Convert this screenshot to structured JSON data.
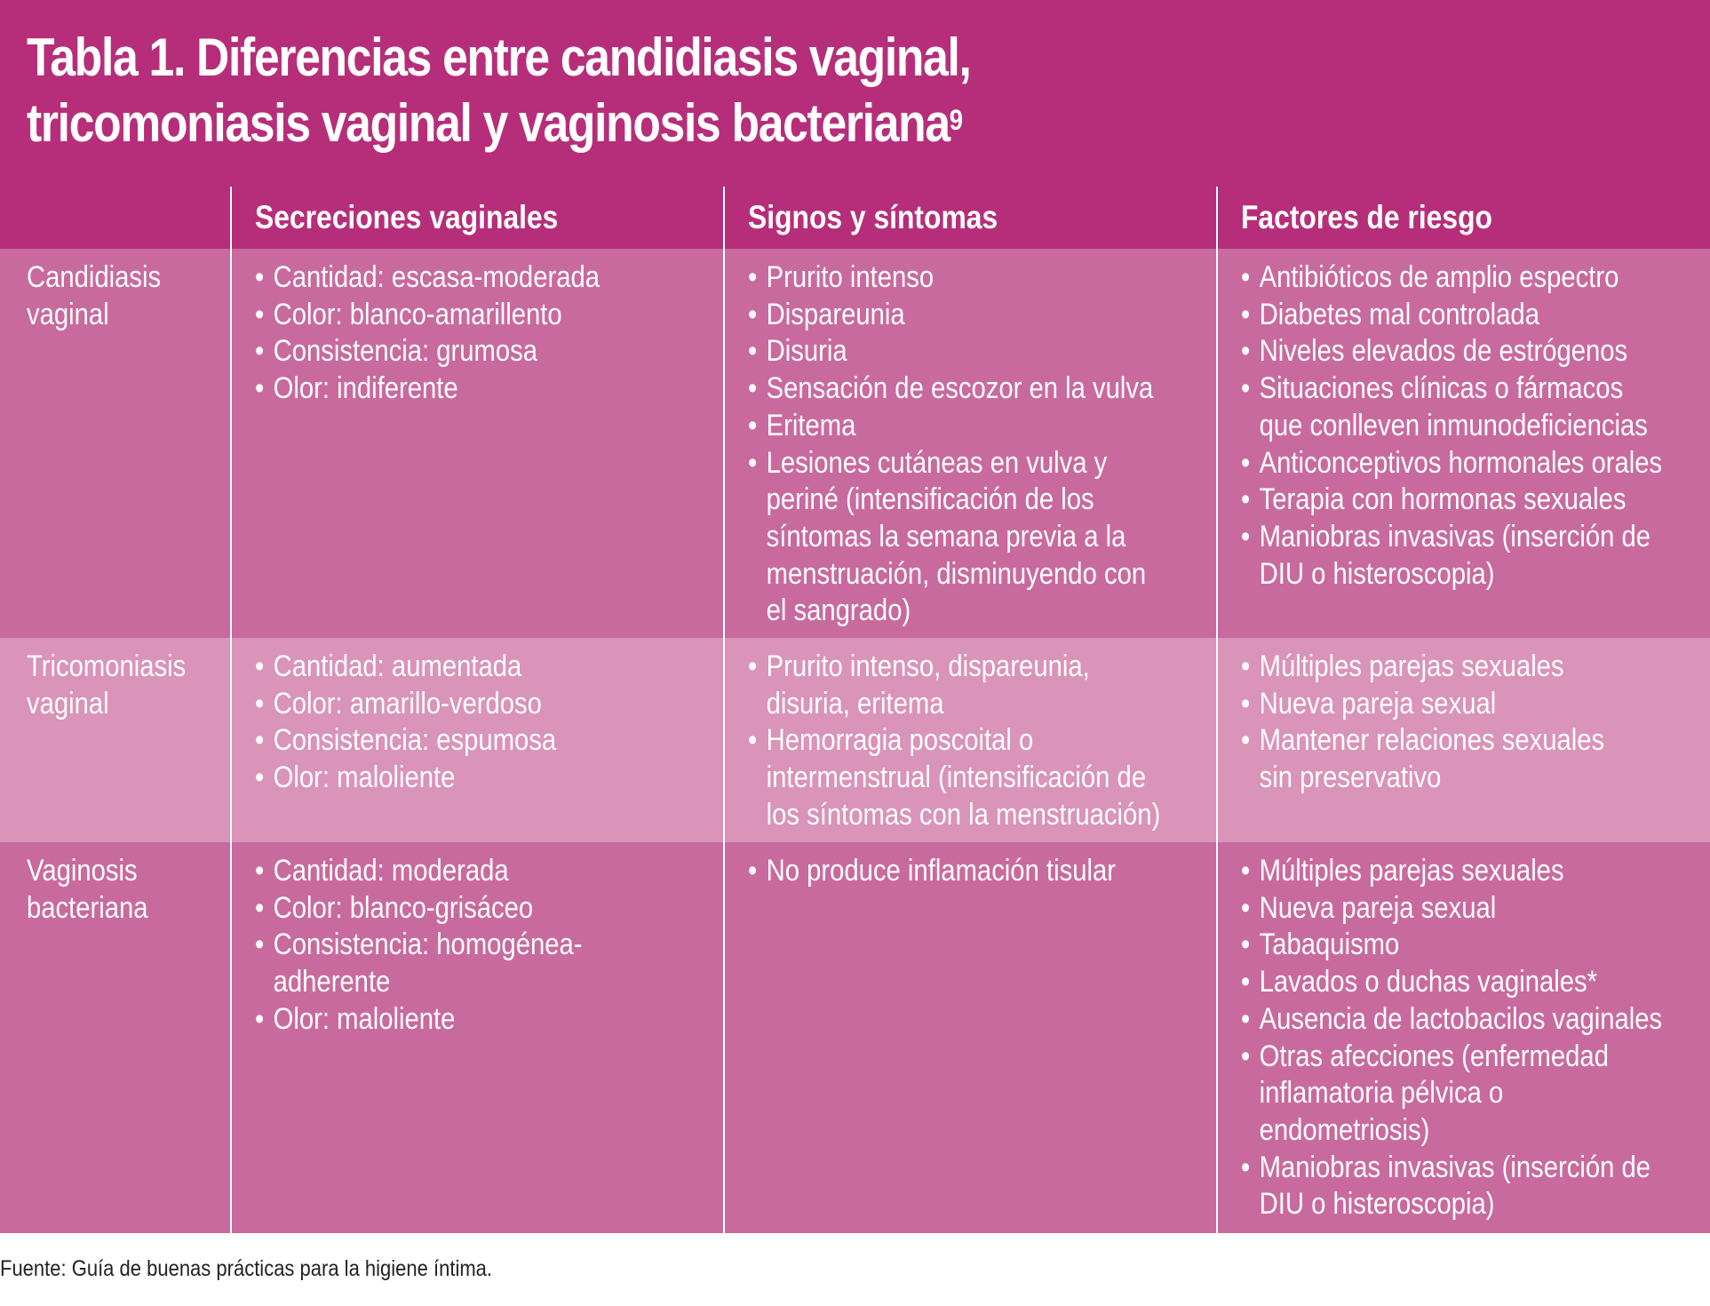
{
  "title": {
    "line1": "Tabla 1. Diferencias entre candidiasis vaginal,",
    "line2": "tricomoniasis vaginal y vaginosis bacteriana",
    "superscript": "9"
  },
  "columns": [
    "",
    "Secreciones vaginales",
    "Signos y síntomas",
    "Factores de riesgo"
  ],
  "rows": [
    {
      "label": [
        "Candidiasis",
        "vaginal"
      ],
      "secreciones": [
        "Cantidad: escasa-moderada",
        "Color: blanco-amarillento",
        "Consistencia: grumosa",
        "Olor: indiferente"
      ],
      "signos": [
        "Prurito intenso",
        "Dispareunia",
        "Disuria",
        "Sensación de escozor en la vulva",
        "Eritema",
        "Lesiones cutáneas en vulva y\nperiné (intensificación de los\nsíntomas la semana previa a la\nmenstruación, disminuyendo con\nel sangrado)"
      ],
      "factores": [
        "Antibióticos de amplio espectro",
        "Diabetes mal controlada",
        "Niveles elevados de estrógenos",
        "Situaciones clínicas o fármacos\nque conlleven inmunodeficiencias",
        "Anticonceptivos hormonales orales",
        "Terapia con hormonas sexuales",
        "Maniobras invasivas (inserción de\nDIU o histeroscopia)"
      ]
    },
    {
      "label": [
        "Tricomoniasis",
        "vaginal"
      ],
      "secreciones": [
        "Cantidad: aumentada",
        "Color: amarillo-verdoso",
        "Consistencia: espumosa",
        "Olor: maloliente"
      ],
      "signos": [
        "Prurito intenso, dispareunia,\ndisuria, eritema",
        "Hemorragia poscoital o\nintermenstrual (intensificación de\nlos síntomas con la menstruación)"
      ],
      "factores": [
        "Múltiples parejas sexuales",
        "Nueva pareja sexual",
        "Mantener relaciones sexuales\nsin preservativo"
      ]
    },
    {
      "label": [
        "Vaginosis",
        "bacteriana"
      ],
      "secreciones": [
        "Cantidad: moderada",
        "Color: blanco-grisáceo",
        "Consistencia: homogénea-\nadherente",
        "Olor: maloliente"
      ],
      "signos": [
        "No produce inflamación tisular"
      ],
      "factores": [
        "Múltiples parejas sexuales",
        "Nueva pareja sexual",
        "Tabaquismo",
        "Lavados o duchas vaginales*",
        "Ausencia de lactobacilos vaginales",
        "Otras afecciones (enfermedad\ninflamatoria pélvica o\nendometriosis)",
        "Maniobras invasivas (inserción de\nDIU o histeroscopia)"
      ]
    }
  ],
  "source": "Fuente: Guía de buenas prácticas para la higiene íntima.",
  "colors": {
    "header": "#b62e79",
    "row_dark": "#c96a9e",
    "row_light": "#da93b9",
    "divider": "#ffffff"
  }
}
